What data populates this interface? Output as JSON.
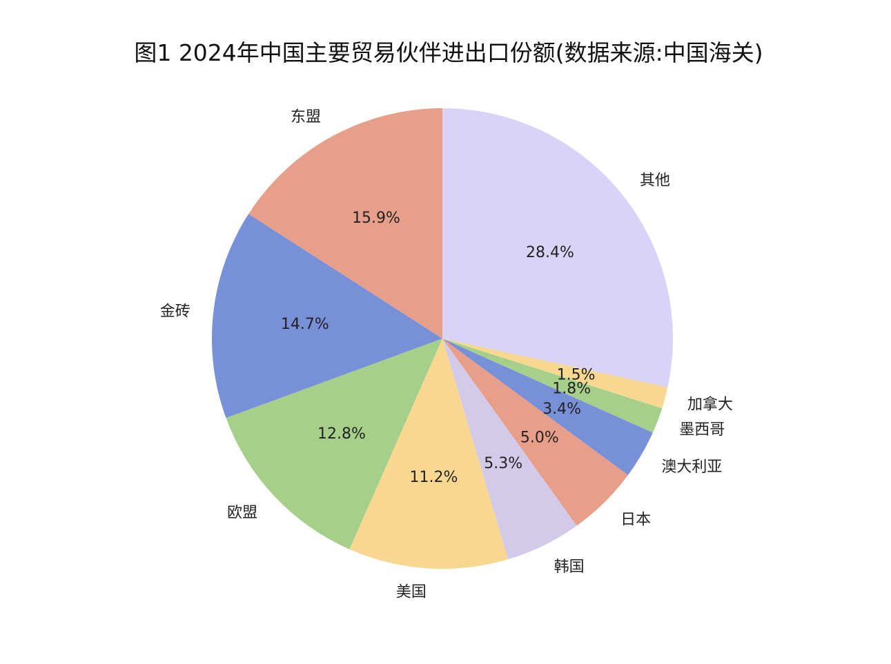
{
  "chart_data": {
    "type": "pie",
    "title": "图1 2024年中国主要贸易伙伴进出口份额(数据来源:中国海关)",
    "start": "12 o'clock",
    "direction": "clockwise",
    "categories": [
      "其他",
      "加拿大",
      "墨西哥",
      "澳大利亚",
      "日本",
      "韩国",
      "美国",
      "欧盟",
      "金砖",
      "东盟"
    ],
    "values": [
      28.4,
      1.5,
      1.8,
      3.4,
      5.0,
      5.3,
      11.2,
      12.8,
      14.7,
      15.9
    ],
    "labels": [
      "28.4%",
      "1.5%",
      "1.8%",
      "3.4%",
      "5.0%",
      "5.3%",
      "11.2%",
      "12.8%",
      "14.7%",
      "15.9%"
    ],
    "colors": [
      "#d9d4f7",
      "#f8d890",
      "#a6d08a",
      "#7890d8",
      "#e89f8a",
      "#d3c9e8",
      "#f8d890",
      "#a6d08a",
      "#7890d8",
      "#e89f8a"
    ]
  }
}
